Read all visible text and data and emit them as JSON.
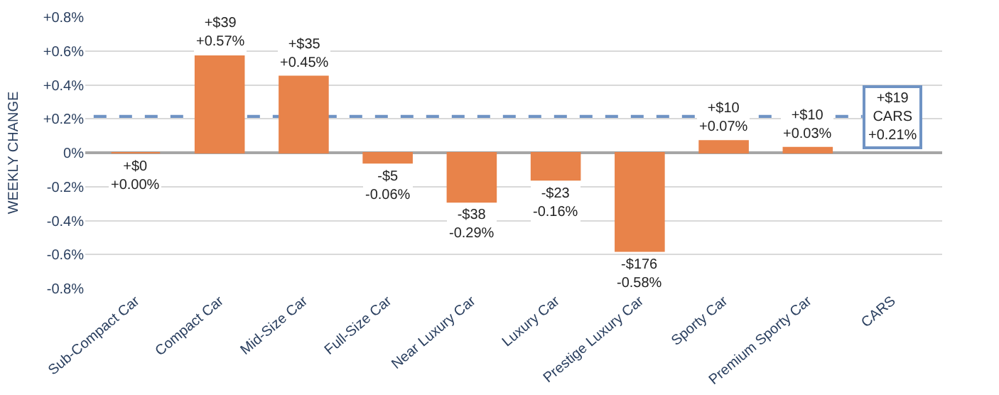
{
  "chart_data": {
    "type": "bar",
    "ylabel": "WEEKLY CHANGE",
    "categories": [
      "Sub-Compact Car",
      "Compact Car",
      "Mid-Size Car",
      "Full-Size Car",
      "Near Luxury Car",
      "Luxury Car",
      "Prestige Luxury Car",
      "Sporty Car",
      "Premium Sporty Car",
      "CARS"
    ],
    "values": [
      0.0,
      0.57,
      0.45,
      -0.06,
      -0.29,
      -0.16,
      -0.58,
      0.07,
      0.03,
      null
    ],
    "value_labels": [
      "+$0\n+0.00%",
      "+$39\n+0.57%",
      "+$35\n+0.45%",
      "-$5\n-0.06%",
      "-$38\n-0.29%",
      "-$23\n-0.16%",
      "-$176\n-0.58%",
      "+$10\n+0.07%",
      "+$10\n+0.03%",
      null
    ],
    "color": "#e8834a",
    "ylim": [
      -0.8,
      0.8
    ],
    "yticks": [
      {
        "value": -0.8,
        "label": "-0.8%"
      },
      {
        "value": -0.6,
        "label": "-0.6%"
      },
      {
        "value": -0.4,
        "label": "-0.4%"
      },
      {
        "value": -0.2,
        "label": "-0.2%"
      },
      {
        "value": 0,
        "label": "0%"
      },
      {
        "value": 0.2,
        "label": "+0.2%"
      },
      {
        "value": 0.4,
        "label": "+0.4%"
      },
      {
        "value": 0.6,
        "label": "+0.6%"
      },
      {
        "value": 0.8,
        "label": "+0.8%"
      }
    ],
    "ref_lines": [
      {
        "axis": "y",
        "value": 0.21,
        "label": "+$19\nCARS\n+0.21%",
        "color": "#6f93c4",
        "line_style": "dashed"
      }
    ],
    "grid": "y"
  }
}
